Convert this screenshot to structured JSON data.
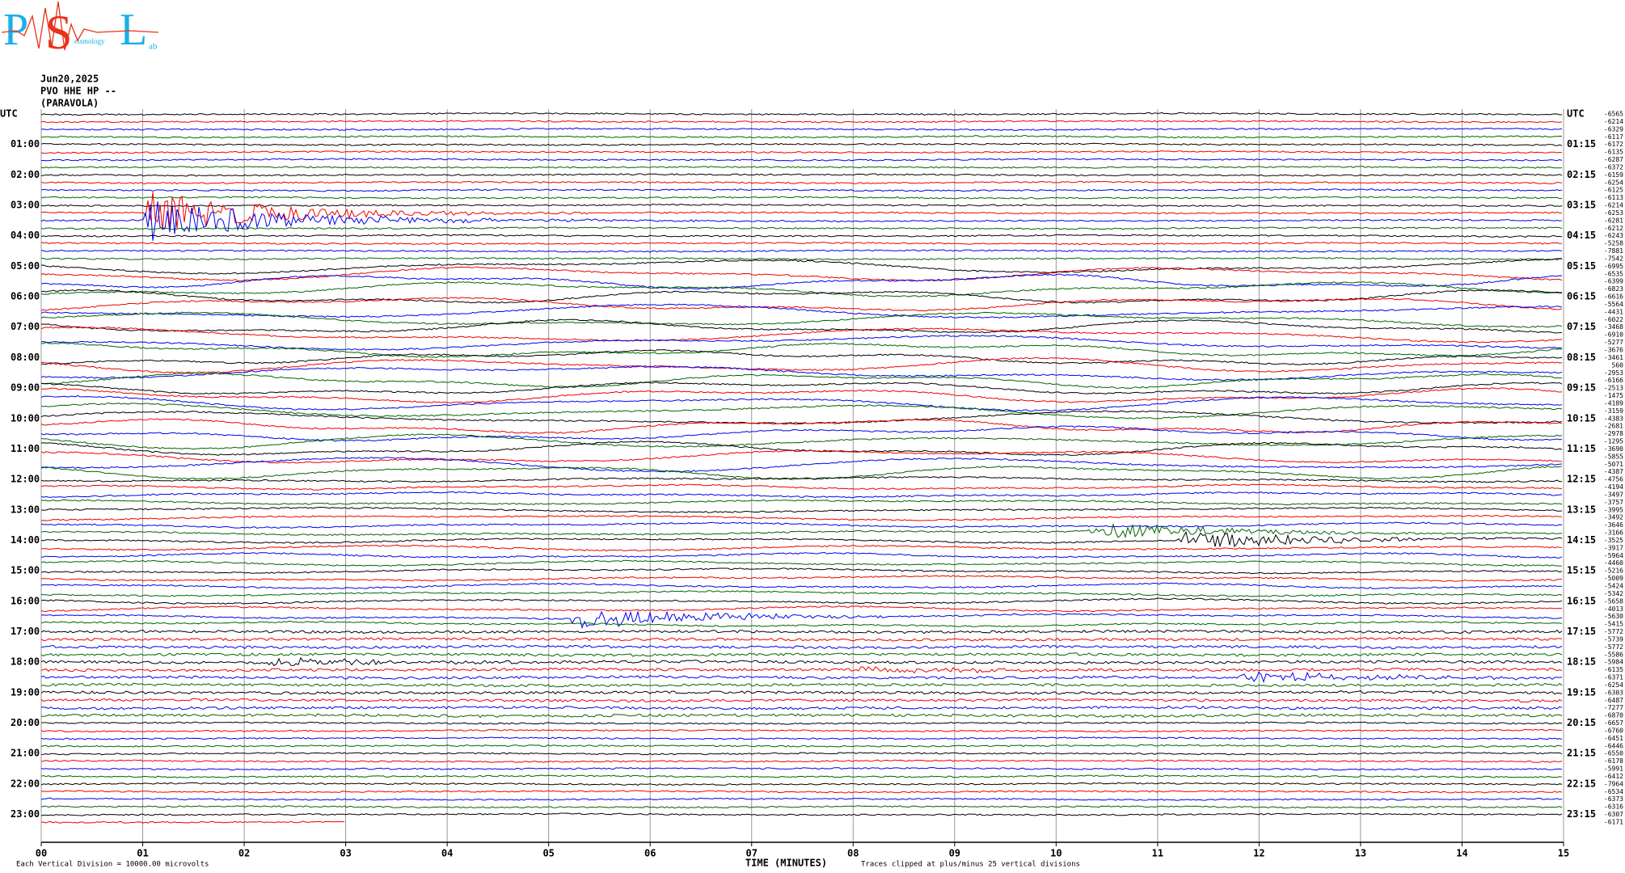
{
  "logo": {
    "letters": [
      "P",
      "S",
      "L"
    ],
    "words": [
      "eismology",
      "ab"
    ]
  },
  "header": {
    "date": "Jun20,2025",
    "station": "PVO HHE HP --",
    "location": "(PARAVOLA)"
  },
  "left_labels": [
    "UTC",
    "01:00",
    "02:00",
    "03:00",
    "04:00",
    "05:00",
    "06:00",
    "07:00",
    "08:00",
    "09:00",
    "10:00",
    "11:00",
    "12:00",
    "13:00",
    "14:00",
    "15:00",
    "16:00",
    "17:00",
    "18:00",
    "19:00",
    "20:00",
    "21:00",
    "22:00",
    "23:00"
  ],
  "right_labels": [
    "UTC",
    "01:15",
    "02:15",
    "03:15",
    "04:15",
    "05:15",
    "06:15",
    "07:15",
    "08:15",
    "09:15",
    "10:15",
    "11:15",
    "12:15",
    "13:15",
    "14:15",
    "15:15",
    "16:15",
    "17:15",
    "18:15",
    "19:15",
    "20:15",
    "21:15",
    "22:15",
    "23:15"
  ],
  "trace_offsets": [
    -6565,
    -6214,
    -6329,
    -6117,
    -6172,
    -6135,
    -6287,
    -6372,
    -6159,
    -6254,
    -6125,
    -6113,
    -6214,
    -6253,
    -6281,
    -6212,
    -6243,
    -5258,
    -7881,
    -7542,
    -6995,
    -6535,
    -6399,
    -6823,
    -6616,
    -5564,
    -4431,
    -6022,
    -3468,
    -6910,
    -5277,
    -3676,
    -3461,
    560,
    -2953,
    -6166,
    -2513,
    -1475,
    -4189,
    -3159,
    -4383,
    -2681,
    -2978,
    -1295,
    -3690,
    -5855,
    -5071,
    -4387,
    -4756,
    -4194,
    -3497,
    -3757,
    -3995,
    -3492,
    -3646,
    -3166,
    -3525,
    -3917,
    -5964,
    -4460,
    -5216,
    -5009,
    -5424,
    -5342,
    -5658,
    -4013,
    -5630,
    -5415,
    -5772,
    -5739,
    -5772,
    -5586,
    -5984,
    -6135,
    -6371,
    -6254,
    -6303,
    -6487,
    -7277,
    -6870,
    -6657,
    -6760,
    -6451,
    -6446,
    -6550,
    -6178,
    -5991,
    -6412,
    -7964,
    -6534,
    -6373,
    -6316,
    -6307,
    -6171
  ],
  "x_ticks": [
    "00",
    "01",
    "02",
    "03",
    "04",
    "05",
    "06",
    "07",
    "08",
    "09",
    "10",
    "11",
    "12",
    "13",
    "14",
    "15"
  ],
  "x_axis_label": "TIME (MINUTES)",
  "footer_left": "Each Vertical Division = 10000.00 microvolts",
  "footer_right": "Traces clipped at plus/minus 25 vertical divisions"
}
